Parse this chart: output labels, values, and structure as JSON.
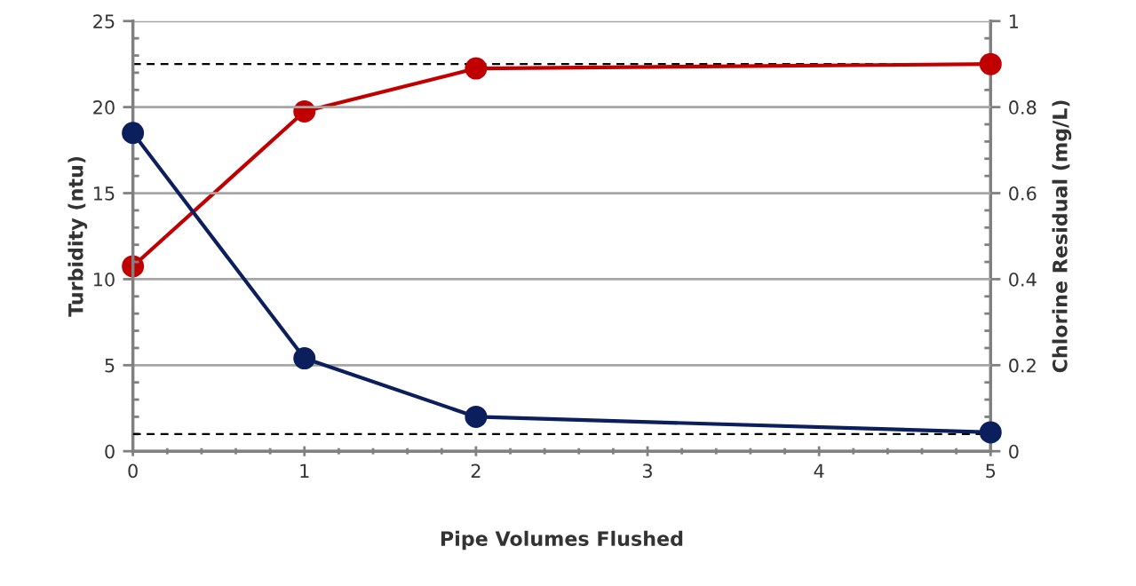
{
  "chart_data": {
    "type": "line",
    "xlabel": "Pipe Volumes Flushed",
    "ylabel": "Turbidity (ntu)",
    "y2label": "Chlorine Residual (mg/L)",
    "xlim": [
      0,
      5
    ],
    "xticks": [
      0,
      1,
      2,
      3,
      4,
      5
    ],
    "ylim": [
      0,
      25
    ],
    "yticks": [
      0,
      5,
      10,
      15,
      20,
      25
    ],
    "y2lim": [
      0,
      1
    ],
    "y2ticks": [
      0,
      0.2,
      0.4,
      0.6,
      0.8,
      1
    ],
    "grid": "y",
    "marker": "circle",
    "line_style": "solid",
    "series": [
      {
        "color": "#0b1f5c",
        "x": [
          0,
          1,
          2,
          5
        ],
        "values": [
          18.5,
          5.4,
          2.0,
          1.1
        ]
      },
      {
        "color": "#c00000",
        "x": [
          0,
          1,
          2,
          5
        ],
        "values": [
          0.43,
          0.79,
          0.89,
          0.9
        ],
        "axis": "y2"
      }
    ],
    "ref_lines": [
      {
        "axis": "y",
        "value": 1,
        "color": "#000000",
        "line_style": "dashed"
      },
      {
        "axis": "y2",
        "value": 0.9,
        "color": "#000000",
        "line_style": "dashed"
      }
    ]
  }
}
